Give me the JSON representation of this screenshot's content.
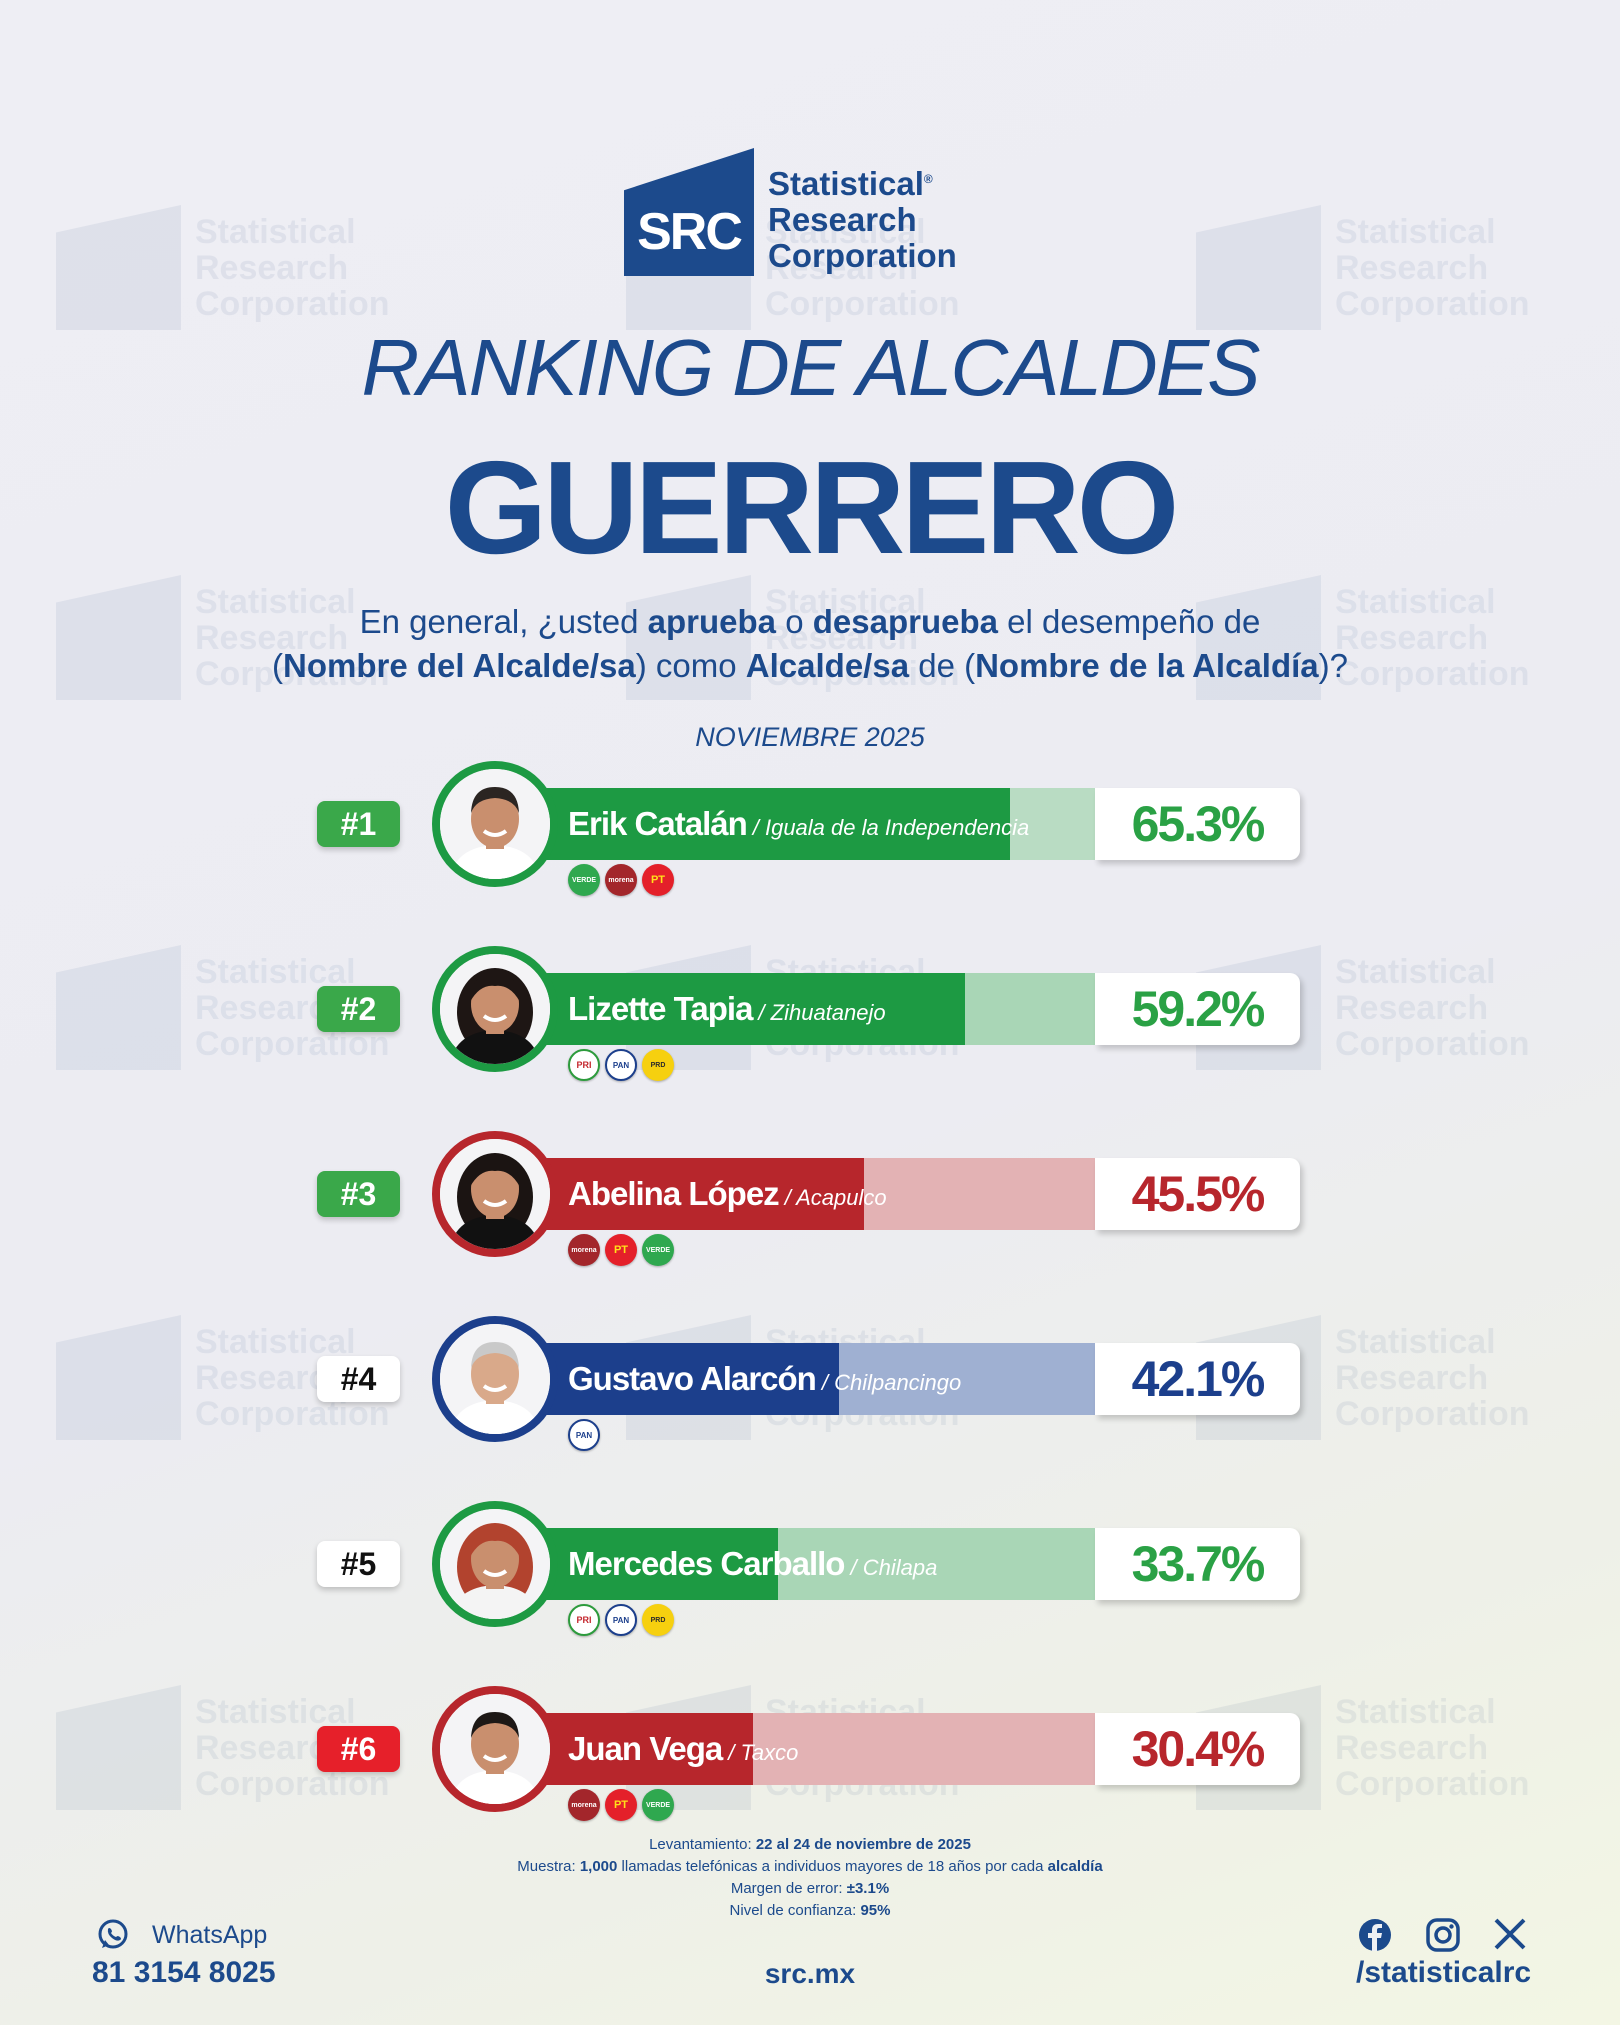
{
  "brand": {
    "logo_mark": "SRC",
    "name_lines": [
      "Statistical",
      "Research",
      "Corporation"
    ],
    "registered": "®",
    "color": "#1c4a8c"
  },
  "header": {
    "title": "RANKING DE ALCALDES",
    "state": "GUERRERO",
    "question_parts": [
      {
        "t": "En general, ¿usted ",
        "b": false
      },
      {
        "t": "aprueba",
        "b": true
      },
      {
        "t": " o ",
        "b": false
      },
      {
        "t": "desaprueba",
        "b": true
      },
      {
        "t": " el desempeño de",
        "b": false
      },
      {
        "br": true
      },
      {
        "t": "(",
        "b": false
      },
      {
        "t": "Nombre del Alcalde/sa",
        "b": true
      },
      {
        "t": ") como ",
        "b": false
      },
      {
        "t": "Alcalde/sa",
        "b": true
      },
      {
        "t": " de (",
        "b": false
      },
      {
        "t": "Nombre de la Alcaldía",
        "b": true
      },
      {
        "t": ")?",
        "b": false
      }
    ],
    "date": "NOVIEMBRE 2025"
  },
  "chart_data": {
    "type": "bar",
    "orientation": "horizontal",
    "unit": "%",
    "xlim": [
      0,
      100
    ],
    "categories": [
      "Erik Catalán",
      "Lizette Tapia",
      "Abelina López",
      "Gustavo Alarcón",
      "Mercedes Carballo",
      "Juan Vega"
    ],
    "values": [
      65.3,
      59.2,
      45.5,
      42.1,
      33.7,
      30.4
    ],
    "rows": [
      {
        "rank": "#1",
        "name": "Erik Catalán",
        "municipality": "/ Iguala de la Independencia",
        "value": 65.3,
        "pct_label": "65.3%",
        "color": "#1d9a43",
        "light": "#b9dcc3",
        "rank_bg": "#3aa84a",
        "rank_fg": "#ffffff",
        "pct_color": "#2aa145",
        "parties": [
          "verde",
          "morena",
          "pt"
        ],
        "portrait": "man-short-hair"
      },
      {
        "rank": "#2",
        "name": "Lizette Tapia",
        "municipality": "/ Zihuatanejo",
        "value": 59.2,
        "pct_label": "59.2%",
        "color": "#1d9a43",
        "light": "#a9d6b6",
        "rank_bg": "#3aa84a",
        "rank_fg": "#ffffff",
        "pct_color": "#2aa145",
        "parties": [
          "pri",
          "pan",
          "prd"
        ],
        "portrait": "woman-dark-hair"
      },
      {
        "rank": "#3",
        "name": "Abelina López",
        "municipality": "/ Acapulco",
        "value": 45.5,
        "pct_label": "45.5%",
        "color": "#b7262c",
        "light": "#e3b2b4",
        "rank_bg": "#3aa84a",
        "rank_fg": "#ffffff",
        "pct_color": "#b7262c",
        "parties": [
          "morena",
          "pt",
          "verde"
        ],
        "portrait": "woman-curly-hair"
      },
      {
        "rank": "#4",
        "name": "Gustavo Alarcón",
        "municipality": "/ Chilpancingo",
        "value": 42.1,
        "pct_label": "42.1%",
        "color": "#1c3f8c",
        "light": "#9fb0d2",
        "rank_bg": "#ffffff",
        "rank_fg": "#111111",
        "pct_color": "#1c3f8c",
        "parties": [
          "pan"
        ],
        "portrait": "man-gray-hair"
      },
      {
        "rank": "#5",
        "name": "Mercedes Carballo",
        "municipality": "/ Chilapa",
        "value": 33.7,
        "pct_label": "33.7%",
        "color": "#1d9a43",
        "light": "#a9d6b6",
        "rank_bg": "#ffffff",
        "rank_fg": "#111111",
        "pct_color": "#2aa145",
        "parties": [
          "pri",
          "pan",
          "prd"
        ],
        "portrait": "woman-red-hair"
      },
      {
        "rank": "#6",
        "name": "Juan Vega",
        "municipality": "/ Taxco",
        "value": 30.4,
        "pct_label": "30.4%",
        "color": "#b7262c",
        "light": "#e3b2b4",
        "rank_bg": "#e6202a",
        "rank_fg": "#ffffff",
        "pct_color": "#b7262c",
        "parties": [
          "morena",
          "pt",
          "verde"
        ],
        "portrait": "man-dark-hair"
      }
    ]
  },
  "party_labels": {
    "verde": "VERDE",
    "morena": "morena",
    "pt": "PT",
    "pri": "PRI",
    "pan": "PAN",
    "prd": "PRD"
  },
  "footer": {
    "notes": [
      [
        {
          "t": "Levantamiento: ",
          "b": false
        },
        {
          "t": "22 al 24 de noviembre de 2025",
          "b": true
        }
      ],
      [
        {
          "t": "Muestra: ",
          "b": false
        },
        {
          "t": "1,000",
          "b": true
        },
        {
          "t": " llamadas telefónicas a individuos mayores de 18 años por cada ",
          "b": false
        },
        {
          "t": "alcaldía",
          "b": true
        }
      ],
      [
        {
          "t": "Margen de error: ",
          "b": false
        },
        {
          "t": "±3.1%",
          "b": true
        }
      ],
      [
        {
          "t": "Nivel de confianza: ",
          "b": false
        },
        {
          "t": "95%",
          "b": true
        }
      ]
    ],
    "whatsapp_label": "WhatsApp",
    "phone": "81 3154 8025",
    "website": "src.mx",
    "social_icons": [
      "facebook-icon",
      "instagram-icon",
      "x-icon"
    ],
    "handle": "/statisticalrc"
  }
}
